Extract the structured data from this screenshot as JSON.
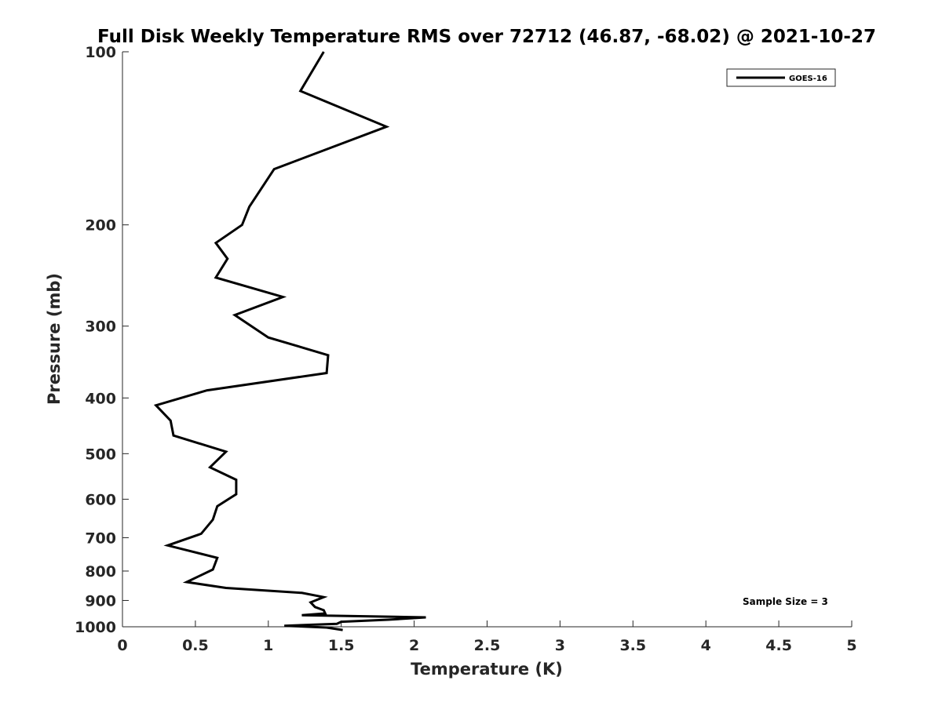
{
  "chart_data": {
    "type": "line",
    "title": "Full Disk Weekly Temperature RMS over 72712 (46.87, -68.02) @ 2021-10-27",
    "xlabel": "Temperature (K)",
    "ylabel": "Pressure (mb)",
    "xlim": [
      0,
      5
    ],
    "ylim": [
      100,
      1000
    ],
    "yscale": "log",
    "yaxis_reversed": true,
    "xticks": [
      0,
      0.5,
      1,
      1.5,
      2,
      2.5,
      3,
      3.5,
      4,
      4.5,
      5
    ],
    "xtick_labels": [
      "0",
      "0.5",
      "1",
      "1.5",
      "2",
      "2.5",
      "3",
      "3.5",
      "4",
      "4.5",
      "5"
    ],
    "yticks": [
      100,
      200,
      300,
      400,
      500,
      600,
      700,
      800,
      900,
      1000
    ],
    "ytick_labels": [
      "100",
      "200",
      "300",
      "400",
      "500",
      "600",
      "700",
      "800",
      "900",
      "1000"
    ],
    "grid": false,
    "legend_position": "top-right",
    "annotation": "Sample Size = 3",
    "series": [
      {
        "name": "GOES-16",
        "color": "#000000",
        "points": [
          [
            1.38,
            100
          ],
          [
            1.22,
            117
          ],
          [
            1.81,
            135
          ],
          [
            1.04,
            160
          ],
          [
            0.87,
            186
          ],
          [
            0.82,
            200
          ],
          [
            0.64,
            215
          ],
          [
            0.72,
            229
          ],
          [
            0.64,
            247
          ],
          [
            1.1,
            267
          ],
          [
            0.77,
            287
          ],
          [
            1.0,
            314
          ],
          [
            1.41,
            337
          ],
          [
            1.4,
            362
          ],
          [
            0.58,
            388
          ],
          [
            0.23,
            412
          ],
          [
            0.33,
            438
          ],
          [
            0.35,
            465
          ],
          [
            0.71,
            496
          ],
          [
            0.6,
            528
          ],
          [
            0.78,
            555
          ],
          [
            0.78,
            588
          ],
          [
            0.65,
            617
          ],
          [
            0.62,
            651
          ],
          [
            0.54,
            689
          ],
          [
            0.31,
            722
          ],
          [
            0.65,
            759
          ],
          [
            0.62,
            795
          ],
          [
            0.44,
            836
          ],
          [
            0.71,
            856
          ],
          [
            1.23,
            873
          ],
          [
            1.38,
            888
          ],
          [
            1.29,
            907
          ],
          [
            1.32,
            924
          ],
          [
            1.38,
            936
          ],
          [
            1.39,
            948
          ],
          [
            1.23,
            955
          ],
          [
            2.08,
            963
          ],
          [
            1.82,
            972
          ],
          [
            1.5,
            980
          ],
          [
            1.47,
            988
          ],
          [
            1.11,
            996
          ],
          [
            1.4,
            1003
          ],
          [
            1.51,
            1013
          ]
        ]
      }
    ]
  }
}
